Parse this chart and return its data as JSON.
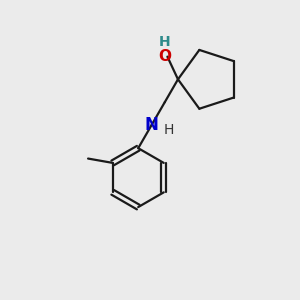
{
  "background_color": "#ebebeb",
  "atom_colors": {
    "O": "#cc0000",
    "N": "#0000cc",
    "H_on_O": "#2e8b8b",
    "H_on_N": "#333333",
    "C": "#1a1a1a"
  },
  "bond_color": "#1a1a1a",
  "bond_lw": 1.6,
  "figsize": [
    3.0,
    3.0
  ],
  "dpi": 100
}
